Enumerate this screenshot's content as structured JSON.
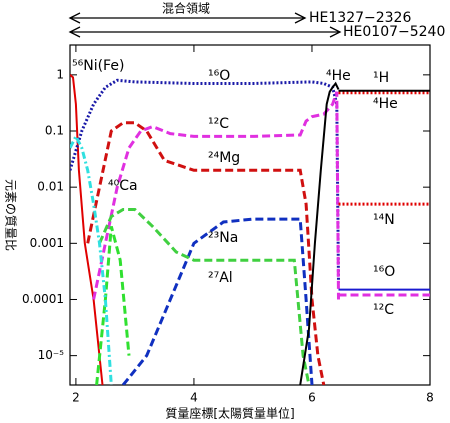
{
  "chart_data": {
    "type": "line",
    "xlabel": "質量座標[太陽質量単位]",
    "ylabel": "元素の質量比",
    "annotations": [
      "混合領域",
      "HE1327−2326",
      "HE0107−5240"
    ],
    "xlim": [
      1.9,
      8
    ],
    "xticks": [
      2,
      4,
      6,
      8
    ],
    "ylim": [
      3e-06,
      3.4
    ],
    "yticks": [
      1,
      0.1,
      0.01,
      0.001,
      0.0001,
      {
        "value": 1e-05,
        "label": "10⁻⁵"
      }
    ],
    "log_y": true,
    "series": [
      {
        "name": "⁵⁶Ni(Fe)",
        "color": "#e00000",
        "style": "solid",
        "x": [
          1.9,
          1.95,
          2.0,
          2.05,
          2.15,
          2.3,
          2.45
        ],
        "values": [
          1,
          0.9,
          0.3,
          0.02,
          0.001,
          0.0001,
          3e-06
        ]
      },
      {
        "name": "¹⁶O",
        "color": "#1a1aa8",
        "style": "dotted",
        "x": [
          1.9,
          2.1,
          2.3,
          2.5,
          2.7,
          3,
          4,
          5,
          6,
          6.2,
          6.35,
          6.42,
          6.45
        ],
        "values": [
          0.02,
          0.1,
          0.3,
          0.6,
          0.8,
          0.75,
          0.7,
          0.7,
          0.75,
          0.7,
          0.6,
          0.3,
          0.0002
        ]
      },
      {
        "name": "¹²C",
        "color": "#e030e0",
        "style": "dashed",
        "x": [
          2.3,
          2.5,
          2.7,
          2.9,
          3.1,
          3.3,
          3.6,
          4,
          5,
          5.8,
          5.9,
          6.0,
          6.2,
          6.35,
          6.42,
          6.45
        ],
        "values": [
          0.0001,
          0.001,
          0.01,
          0.05,
          0.1,
          0.12,
          0.09,
          0.08,
          0.08,
          0.085,
          0.15,
          0.18,
          0.2,
          0.3,
          0.5,
          0.0001
        ]
      },
      {
        "name": "²⁴Mg",
        "color": "#d01010",
        "style": "dashed",
        "x": [
          2.2,
          2.4,
          2.6,
          2.8,
          3.0,
          3.2,
          3.5,
          4,
          5,
          5.8,
          5.9,
          6.0,
          6.1,
          6.2
        ],
        "values": [
          0.001,
          0.01,
          0.1,
          0.14,
          0.14,
          0.1,
          0.03,
          0.02,
          0.02,
          0.02,
          0.005,
          0.0001,
          1e-05,
          3e-06
        ]
      },
      {
        "name": "⁴⁰Ca",
        "color": "#30e030",
        "style": "dashed",
        "x": [
          2.35,
          2.5,
          2.6,
          2.75,
          2.9
        ],
        "values": [
          3e-06,
          0.0001,
          0.002,
          0.0005,
          1e-05
        ]
      },
      {
        "name": "²³Na",
        "color": "#1030c0",
        "style": "dashed",
        "x": [
          2.8,
          3.2,
          3.6,
          4,
          4.5,
          5,
          5.8,
          5.9,
          6.0
        ],
        "values": [
          3e-06,
          1e-05,
          0.0001,
          0.001,
          0.0024,
          0.0027,
          0.0027,
          0.0001,
          3e-06
        ]
      },
      {
        "name": "²⁷Al",
        "color": "#40d040",
        "style": "dashed",
        "x": [
          2.4,
          2.6,
          2.8,
          3.0,
          3.3,
          3.7,
          4,
          5,
          5.7,
          5.85,
          5.95
        ],
        "values": [
          0.001,
          0.003,
          0.004,
          0.004,
          0.002,
          0.0007,
          0.0005,
          0.0005,
          0.0005,
          1e-05,
          3e-06
        ]
      },
      {
        "name": "⁴He",
        "color": "#000000",
        "style": "solid",
        "x": [
          5.8,
          5.95,
          6.05,
          6.15,
          6.25,
          6.3,
          6.35,
          6.4,
          6.45
        ],
        "values": [
          3e-06,
          3e-05,
          0.001,
          0.02,
          0.3,
          0.5,
          0.6,
          0.7,
          0.55
        ]
      },
      {
        "name": "¹H",
        "color": "#e00000",
        "style": "dotted",
        "x": [
          6.45,
          8
        ],
        "values": [
          0.48,
          0.48
        ]
      },
      {
        "name": "⁴He",
        "color": "#000000",
        "style": "solid",
        "x": [
          6.45,
          8
        ],
        "values": [
          0.52,
          0.52
        ]
      },
      {
        "name": "¹⁴N",
        "color": "#e00000",
        "style": "dotted",
        "x": [
          6.45,
          8
        ],
        "values": [
          0.005,
          0.005
        ]
      },
      {
        "name": "¹⁶O",
        "color": "#1a1ad0",
        "style": "solid",
        "x": [
          6.45,
          8
        ],
        "values": [
          0.00015,
          0.00015
        ]
      },
      {
        "name": "¹²C",
        "color": "#e030e0",
        "style": "dashed",
        "x": [
          6.45,
          8
        ],
        "values": [
          0.00012,
          0.00012
        ]
      },
      {
        "color": "#30e0e0",
        "style": "dashdot",
        "x": [
          1.9,
          2.0,
          2.1,
          2.2,
          2.3,
          2.4,
          2.5,
          2.6
        ],
        "values": [
          0.05,
          0.08,
          0.05,
          0.02,
          0.005,
          0.001,
          0.0001,
          3e-06
        ]
      }
    ]
  }
}
